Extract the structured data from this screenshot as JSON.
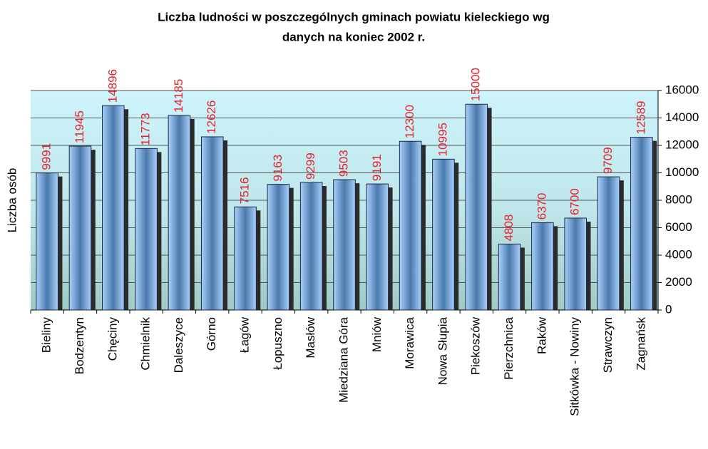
{
  "chart_data": {
    "type": "bar",
    "title": [
      "Liczba ludności w poszczególnych gminach powiatu kieleckiego wg",
      "danych na koniec 2002 r."
    ],
    "y_label": "Liczba osób",
    "categories": [
      "Bieliny",
      "Bodzentyn",
      "Chęciny",
      "Chmielnik",
      "Daleszyce",
      "Górno",
      "Łagów",
      "Łopuszno",
      "Masłów",
      "Miedziana Góra",
      "Mniów",
      "Morawica",
      "Nowa Słupia",
      "Piekoszów",
      "Pierzchnica",
      "Raków",
      "Sitkówka - Nowiny",
      "Strawczyn",
      "Zagnańsk"
    ],
    "values": [
      9991,
      11945,
      14896,
      11773,
      14185,
      12626,
      7516,
      9163,
      9299,
      9503,
      9191,
      12300,
      10995,
      15000,
      4808,
      6370,
      6700,
      9709,
      12589
    ],
    "color": "#7fb2ee",
    "label_color": "#e8202a",
    "ylim": [
      0,
      16000
    ],
    "yticks": [
      0,
      2000,
      4000,
      6000,
      8000,
      10000,
      12000,
      14000,
      16000
    ],
    "grid": true
  }
}
